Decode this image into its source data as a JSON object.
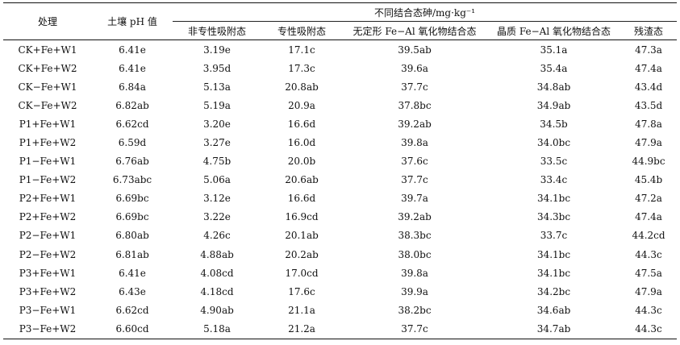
{
  "headers": {
    "treatment": "处理",
    "ph": "土壤 pH 值",
    "group": "不同结合态砷/mg·kg⁻¹",
    "cols": [
      "非专性吸附态",
      "专性吸附态",
      "无定形 Fe−Al 氧化物结合态",
      "晶质 Fe−Al 氧化物结合态",
      "残渣态"
    ]
  },
  "rows": [
    [
      "CK+Fe+W1",
      "6.41e",
      "3.19e",
      "17.1c",
      "39.5ab",
      "35.1a",
      "47.3a"
    ],
    [
      "CK+Fe+W2",
      "6.41e",
      "3.95d",
      "17.3c",
      "39.6a",
      "35.4a",
      "47.4a"
    ],
    [
      "CK−Fe+W1",
      "6.84a",
      "5.13a",
      "20.8ab",
      "37.7c",
      "34.8ab",
      "43.4d"
    ],
    [
      "CK−Fe+W2",
      "6.82ab",
      "5.19a",
      "20.9a",
      "37.8bc",
      "34.9ab",
      "43.5d"
    ],
    [
      "P1+Fe+W1",
      "6.62cd",
      "3.20e",
      "16.6d",
      "39.2ab",
      "34.5b",
      "47.8a"
    ],
    [
      "P1+Fe+W2",
      "6.59d",
      "3.27e",
      "16.0d",
      "39.8a",
      "34.0bc",
      "47.9a"
    ],
    [
      "P1−Fe+W1",
      "6.76ab",
      "4.75b",
      "20.0b",
      "37.6c",
      "33.5c",
      "44.9bc"
    ],
    [
      "P1−Fe+W2",
      "6.73abc",
      "5.06a",
      "20.6ab",
      "37.7c",
      "33.4c",
      "45.4b"
    ],
    [
      "P2+Fe+W1",
      "6.69bc",
      "3.12e",
      "16.6d",
      "39.7a",
      "34.1bc",
      "47.2a"
    ],
    [
      "P2+Fe+W2",
      "6.69bc",
      "3.22e",
      "16.9cd",
      "39.2ab",
      "34.3bc",
      "47.4a"
    ],
    [
      "P2−Fe+W1",
      "6.80ab",
      "4.26c",
      "20.1ab",
      "38.3bc",
      "33.7c",
      "44.2cd"
    ],
    [
      "P2−Fe+W2",
      "6.81ab",
      "4.88ab",
      "20.2ab",
      "38.0bc",
      "34.1bc",
      "44.3c"
    ],
    [
      "P3+Fe+W1",
      "6.41e",
      "4.08cd",
      "17.0cd",
      "39.8a",
      "34.1bc",
      "47.5a"
    ],
    [
      "P3+Fe+W2",
      "6.43e",
      "4.18cd",
      "17.6c",
      "39.9a",
      "34.2bc",
      "47.9a"
    ],
    [
      "P3−Fe+W1",
      "6.62cd",
      "4.90ab",
      "21.1a",
      "38.2bc",
      "34.6ab",
      "44.3c"
    ],
    [
      "P3−Fe+W2",
      "6.60cd",
      "5.18a",
      "21.2a",
      "37.7c",
      "34.7ab",
      "44.3c"
    ]
  ]
}
